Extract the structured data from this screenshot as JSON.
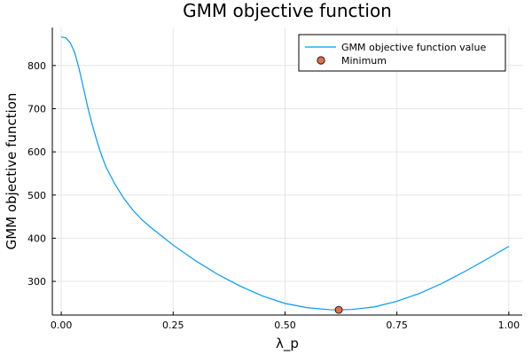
{
  "chart_data": {
    "type": "line",
    "title": "GMM objective function",
    "xlabel": "λ_p",
    "ylabel": "GMM objective function",
    "xlim": [
      -0.02,
      1.03
    ],
    "ylim": [
      222,
      888
    ],
    "xticks": [
      0.0,
      0.25,
      0.5,
      0.75,
      1.0
    ],
    "xtick_labels": [
      "0.00",
      "0.25",
      "0.50",
      "0.75",
      "1.00"
    ],
    "yticks": [
      300,
      400,
      500,
      600,
      700,
      800
    ],
    "ytick_labels": [
      "300",
      "400",
      "500",
      "600",
      "700",
      "800"
    ],
    "grid": true,
    "legend_position": "top-right",
    "series": [
      {
        "name": "GMM objective function value",
        "type": "line",
        "color": "#009AFA",
        "x": [
          0.0,
          0.01,
          0.02,
          0.03,
          0.04,
          0.05,
          0.06,
          0.07,
          0.08,
          0.09,
          0.1,
          0.12,
          0.14,
          0.16,
          0.18,
          0.2,
          0.25,
          0.3,
          0.35,
          0.4,
          0.45,
          0.5,
          0.55,
          0.6,
          0.62,
          0.65,
          0.7,
          0.75,
          0.8,
          0.85,
          0.9,
          0.95,
          1.0
        ],
        "y": [
          866,
          864,
          853,
          830,
          792,
          746,
          700,
          660,
          624,
          592,
          565,
          525,
          492,
          465,
          443,
          425,
          384,
          348,
          316,
          289,
          266,
          249,
          239,
          234.5,
          234,
          235,
          241,
          254,
          272,
          295,
          322,
          351,
          381
        ]
      },
      {
        "name": "Minimum",
        "type": "scatter",
        "color": "#E26F46",
        "x": [
          0.62
        ],
        "y": [
          234
        ]
      }
    ]
  }
}
